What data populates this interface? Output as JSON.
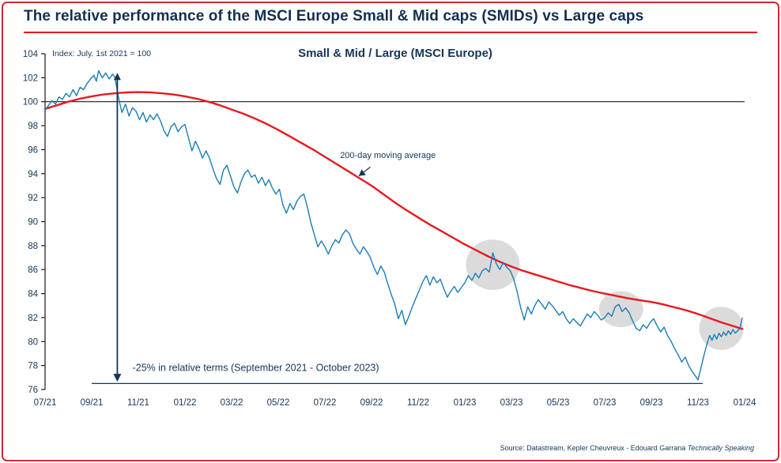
{
  "header": {
    "title": "The relative performance of the MSCI Europe Small & Mid caps (SMIDs) vs Large caps"
  },
  "footer": {
    "source_prefix": "Source: Datastream, Kepler Cheuvreux - Edouard Garrana ",
    "source_italic": "Technically Speaking"
  },
  "colors": {
    "navy": "#14365a",
    "blue_line": "#1b7db6",
    "red_line": "#e8191e",
    "accent_red": "#e01b22",
    "frame_red": "#cf2b33",
    "highlight_gray": "#d2d2d2",
    "axis_black": "#1a1a1a"
  },
  "chart_data": {
    "type": "line",
    "title": "Small & Mid / Large (MSCI Europe)",
    "index_note": "Index: July. 1st 2021 = 100",
    "x_range": [
      0,
      30
    ],
    "ylim": [
      76,
      104
    ],
    "y_ticks": [
      76,
      78,
      80,
      82,
      84,
      86,
      88,
      90,
      92,
      94,
      96,
      98,
      100,
      102,
      104
    ],
    "x_tick_positions": [
      0,
      2,
      4,
      6,
      8,
      10,
      12,
      14,
      16,
      18,
      20,
      22,
      24,
      26,
      28,
      30
    ],
    "x_tick_labels": [
      "07/21",
      "09/21",
      "11/21",
      "01/22",
      "03/22",
      "05/22",
      "07/22",
      "09/22",
      "11/22",
      "01/23",
      "03/23",
      "05/23",
      "07/23",
      "09/23",
      "11/23",
      "01/24"
    ],
    "reference_line_y": 100,
    "series": [
      {
        "name": "Small & Mid / Large relative index",
        "role": "index",
        "points": [
          [
            0,
            99.3
          ],
          [
            0.15,
            99.7
          ],
          [
            0.3,
            100.1
          ],
          [
            0.45,
            99.8
          ],
          [
            0.6,
            100.4
          ],
          [
            0.75,
            100.2
          ],
          [
            0.9,
            100.7
          ],
          [
            1.05,
            100.4
          ],
          [
            1.2,
            101.0
          ],
          [
            1.35,
            100.5
          ],
          [
            1.5,
            101.2
          ],
          [
            1.65,
            101.0
          ],
          [
            1.8,
            101.5
          ],
          [
            1.95,
            101.9
          ],
          [
            2.1,
            102.2
          ],
          [
            2.2,
            101.7
          ],
          [
            2.3,
            102.6
          ],
          [
            2.45,
            102.0
          ],
          [
            2.6,
            102.4
          ],
          [
            2.75,
            101.9
          ],
          [
            2.9,
            102.3
          ],
          [
            3.0,
            102.0
          ],
          [
            3.1,
            100.9
          ],
          [
            3.2,
            99.9
          ],
          [
            3.3,
            99.1
          ],
          [
            3.45,
            99.8
          ],
          [
            3.6,
            98.8
          ],
          [
            3.75,
            99.5
          ],
          [
            3.9,
            99.2
          ],
          [
            4.05,
            98.5
          ],
          [
            4.2,
            99.1
          ],
          [
            4.35,
            98.3
          ],
          [
            4.5,
            98.9
          ],
          [
            4.65,
            98.5
          ],
          [
            4.8,
            99.0
          ],
          [
            4.95,
            98.4
          ],
          [
            5.1,
            97.6
          ],
          [
            5.25,
            97.1
          ],
          [
            5.4,
            97.9
          ],
          [
            5.55,
            98.2
          ],
          [
            5.7,
            97.5
          ],
          [
            5.85,
            97.9
          ],
          [
            6.0,
            98.1
          ],
          [
            6.15,
            97.0
          ],
          [
            6.3,
            95.9
          ],
          [
            6.45,
            96.7
          ],
          [
            6.6,
            96.1
          ],
          [
            6.75,
            95.3
          ],
          [
            6.9,
            95.9
          ],
          [
            7.05,
            95.3
          ],
          [
            7.2,
            94.4
          ],
          [
            7.35,
            93.6
          ],
          [
            7.5,
            93.1
          ],
          [
            7.65,
            94.3
          ],
          [
            7.8,
            94.7
          ],
          [
            7.95,
            93.8
          ],
          [
            8.1,
            92.9
          ],
          [
            8.25,
            92.4
          ],
          [
            8.4,
            93.3
          ],
          [
            8.55,
            94.0
          ],
          [
            8.7,
            94.3
          ],
          [
            8.85,
            93.7
          ],
          [
            9.0,
            93.9
          ],
          [
            9.15,
            93.2
          ],
          [
            9.3,
            93.7
          ],
          [
            9.45,
            93.0
          ],
          [
            9.6,
            93.5
          ],
          [
            9.75,
            92.8
          ],
          [
            9.9,
            92.3
          ],
          [
            10.05,
            92.7
          ],
          [
            10.2,
            91.4
          ],
          [
            10.35,
            90.7
          ],
          [
            10.5,
            91.5
          ],
          [
            10.65,
            91.0
          ],
          [
            10.8,
            91.7
          ],
          [
            10.95,
            92.1
          ],
          [
            11.1,
            92.3
          ],
          [
            11.25,
            91.2
          ],
          [
            11.4,
            89.9
          ],
          [
            11.55,
            88.9
          ],
          [
            11.7,
            87.9
          ],
          [
            11.85,
            88.4
          ],
          [
            12.0,
            87.9
          ],
          [
            12.15,
            87.3
          ],
          [
            12.3,
            88.0
          ],
          [
            12.45,
            88.5
          ],
          [
            12.6,
            88.2
          ],
          [
            12.75,
            88.9
          ],
          [
            12.9,
            89.3
          ],
          [
            13.05,
            89.0
          ],
          [
            13.2,
            88.2
          ],
          [
            13.35,
            87.7
          ],
          [
            13.5,
            87.3
          ],
          [
            13.65,
            87.9
          ],
          [
            13.8,
            87.5
          ],
          [
            13.95,
            87.0
          ],
          [
            14.1,
            86.2
          ],
          [
            14.25,
            85.6
          ],
          [
            14.4,
            86.3
          ],
          [
            14.55,
            85.8
          ],
          [
            14.7,
            84.8
          ],
          [
            14.85,
            83.9
          ],
          [
            15.0,
            83.1
          ],
          [
            15.15,
            81.9
          ],
          [
            15.3,
            82.6
          ],
          [
            15.45,
            81.4
          ],
          [
            15.6,
            82.1
          ],
          [
            15.75,
            82.9
          ],
          [
            15.9,
            83.6
          ],
          [
            16.05,
            84.3
          ],
          [
            16.2,
            85.0
          ],
          [
            16.35,
            85.5
          ],
          [
            16.5,
            84.7
          ],
          [
            16.65,
            85.4
          ],
          [
            16.8,
            84.9
          ],
          [
            16.95,
            85.2
          ],
          [
            17.1,
            84.4
          ],
          [
            17.25,
            83.7
          ],
          [
            17.4,
            84.2
          ],
          [
            17.55,
            84.6
          ],
          [
            17.7,
            84.1
          ],
          [
            17.85,
            84.5
          ],
          [
            18.0,
            84.9
          ],
          [
            18.15,
            85.5
          ],
          [
            18.3,
            85.1
          ],
          [
            18.45,
            85.7
          ],
          [
            18.6,
            85.3
          ],
          [
            18.75,
            85.9
          ],
          [
            18.9,
            86.1
          ],
          [
            19.05,
            85.8
          ],
          [
            19.2,
            87.4
          ],
          [
            19.35,
            86.5
          ],
          [
            19.5,
            86.0
          ],
          [
            19.65,
            86.6
          ],
          [
            19.8,
            86.2
          ],
          [
            19.95,
            85.9
          ],
          [
            20.1,
            85.2
          ],
          [
            20.25,
            84.1
          ],
          [
            20.4,
            82.8
          ],
          [
            20.55,
            81.8
          ],
          [
            20.7,
            82.9
          ],
          [
            20.85,
            82.3
          ],
          [
            21.0,
            83.0
          ],
          [
            21.15,
            83.5
          ],
          [
            21.3,
            83.1
          ],
          [
            21.45,
            82.7
          ],
          [
            21.6,
            83.3
          ],
          [
            21.75,
            83.0
          ],
          [
            21.9,
            82.6
          ],
          [
            22.05,
            82.2
          ],
          [
            22.2,
            82.5
          ],
          [
            22.35,
            81.9
          ],
          [
            22.5,
            81.5
          ],
          [
            22.65,
            81.9
          ],
          [
            22.8,
            81.6
          ],
          [
            22.95,
            81.3
          ],
          [
            23.1,
            81.8
          ],
          [
            23.25,
            82.3
          ],
          [
            23.4,
            82.0
          ],
          [
            23.55,
            82.5
          ],
          [
            23.7,
            82.2
          ],
          [
            23.85,
            81.8
          ],
          [
            24.0,
            82.0
          ],
          [
            24.15,
            82.4
          ],
          [
            24.3,
            82.1
          ],
          [
            24.45,
            82.9
          ],
          [
            24.6,
            83.1
          ],
          [
            24.75,
            82.5
          ],
          [
            24.9,
            82.8
          ],
          [
            25.05,
            82.4
          ],
          [
            25.2,
            81.7
          ],
          [
            25.35,
            81.1
          ],
          [
            25.5,
            80.9
          ],
          [
            25.65,
            81.4
          ],
          [
            25.8,
            81.1
          ],
          [
            25.95,
            81.6
          ],
          [
            26.1,
            81.9
          ],
          [
            26.25,
            81.3
          ],
          [
            26.4,
            80.8
          ],
          [
            26.55,
            81.2
          ],
          [
            26.7,
            80.5
          ],
          [
            26.85,
            80.0
          ],
          [
            27.0,
            79.4
          ],
          [
            27.15,
            78.9
          ],
          [
            27.3,
            78.3
          ],
          [
            27.45,
            78.7
          ],
          [
            27.6,
            78.0
          ],
          [
            27.75,
            77.5
          ],
          [
            27.9,
            77.1
          ],
          [
            28.0,
            76.8
          ],
          [
            28.1,
            77.6
          ],
          [
            28.2,
            78.4
          ],
          [
            28.3,
            79.2
          ],
          [
            28.4,
            79.9
          ],
          [
            28.5,
            80.5
          ],
          [
            28.6,
            80.1
          ],
          [
            28.7,
            80.6
          ],
          [
            28.8,
            80.2
          ],
          [
            28.9,
            80.7
          ],
          [
            29.0,
            80.4
          ],
          [
            29.1,
            80.8
          ],
          [
            29.2,
            80.5
          ],
          [
            29.3,
            80.9
          ],
          [
            29.4,
            80.6
          ],
          [
            29.5,
            81.0
          ],
          [
            29.6,
            80.7
          ],
          [
            29.7,
            80.9
          ],
          [
            29.8,
            81.1
          ],
          [
            29.9,
            82.0
          ]
        ]
      },
      {
        "name": "200-day moving average",
        "role": "moving_average",
        "points": [
          [
            0,
            99.4
          ],
          [
            0.5,
            99.7
          ],
          [
            1,
            100.0
          ],
          [
            1.5,
            100.25
          ],
          [
            2,
            100.45
          ],
          [
            2.5,
            100.6
          ],
          [
            3,
            100.7
          ],
          [
            3.5,
            100.78
          ],
          [
            4,
            100.8
          ],
          [
            4.5,
            100.78
          ],
          [
            5,
            100.7
          ],
          [
            5.5,
            100.6
          ],
          [
            6,
            100.45
          ],
          [
            6.5,
            100.25
          ],
          [
            7,
            100.0
          ],
          [
            7.5,
            99.7
          ],
          [
            8,
            99.35
          ],
          [
            8.5,
            99.0
          ],
          [
            9,
            98.6
          ],
          [
            9.5,
            98.15
          ],
          [
            10,
            97.65
          ],
          [
            10.5,
            97.1
          ],
          [
            11,
            96.55
          ],
          [
            11.5,
            96.0
          ],
          [
            12,
            95.4
          ],
          [
            12.5,
            94.8
          ],
          [
            13,
            94.2
          ],
          [
            13.5,
            93.6
          ],
          [
            14,
            93.0
          ],
          [
            14.5,
            92.3
          ],
          [
            15,
            91.6
          ],
          [
            15.5,
            90.95
          ],
          [
            16,
            90.35
          ],
          [
            16.5,
            89.75
          ],
          [
            17,
            89.2
          ],
          [
            17.5,
            88.65
          ],
          [
            18,
            88.1
          ],
          [
            18.6,
            87.5
          ],
          [
            19,
            87.1
          ],
          [
            19.5,
            86.65
          ],
          [
            20,
            86.25
          ],
          [
            20.5,
            85.9
          ],
          [
            21,
            85.6
          ],
          [
            21.5,
            85.3
          ],
          [
            22,
            85.0
          ],
          [
            22.5,
            84.7
          ],
          [
            23,
            84.45
          ],
          [
            23.5,
            84.2
          ],
          [
            24,
            84.0
          ],
          [
            24.5,
            83.8
          ],
          [
            25,
            83.6
          ],
          [
            25.5,
            83.45
          ],
          [
            26,
            83.3
          ],
          [
            26.5,
            83.1
          ],
          [
            27,
            82.85
          ],
          [
            27.5,
            82.6
          ],
          [
            28,
            82.3
          ],
          [
            28.5,
            81.95
          ],
          [
            29,
            81.6
          ],
          [
            29.5,
            81.3
          ],
          [
            29.9,
            81.05
          ]
        ]
      }
    ],
    "annotations": {
      "ma_label": {
        "text": "200-day moving average",
        "text_x": 12.65,
        "text_y": 95.3,
        "arrow_from_x": 13.95,
        "arrow_from_y": 94.55,
        "arrow_to_x": 13.45,
        "arrow_to_y": 93.8
      },
      "drawdown": {
        "text": "-25% in relative terms (September 2021 - October 2023)",
        "text_x": 3.75,
        "text_y": 77.55,
        "arrow_x": 3.1,
        "arrow_top": 102.4,
        "arrow_bottom": 76.65,
        "baseline_y": 76.5,
        "baseline_x1": 2.0,
        "baseline_x2": 28.2
      },
      "highlights": [
        {
          "cx": 19.2,
          "cy": 86.4,
          "rx": 1.15,
          "ry": 2.1
        },
        {
          "cx": 24.7,
          "cy": 82.7,
          "rx": 0.95,
          "ry": 1.5
        },
        {
          "cx": 29.0,
          "cy": 81.1,
          "rx": 0.95,
          "ry": 1.8
        }
      ]
    }
  }
}
